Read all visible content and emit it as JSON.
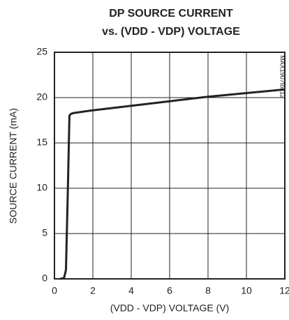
{
  "chart_data": {
    "type": "line",
    "title": [
      "DP SOURCE CURRENT",
      "vs. (VDD - VDP) VOLTAGE"
    ],
    "xlabel": "(VDD - VDP) VOLTAGE (V)",
    "ylabel": "SOURCE CURRENT (mA)",
    "annotation": "MAX1907toc12",
    "x": [
      0.3,
      0.5,
      0.6,
      0.7,
      0.78,
      0.85,
      1,
      2,
      4,
      6,
      8,
      10,
      12
    ],
    "series": [
      {
        "name": "SOURCE CURRENT",
        "color": "#222222",
        "values": [
          0,
          0.1,
          1,
          10,
          18,
          18.2,
          18.3,
          18.6,
          19.1,
          19.6,
          20.1,
          20.5,
          20.9
        ]
      }
    ],
    "xlim": [
      0,
      12
    ],
    "xticks": [
      0,
      2,
      4,
      6,
      8,
      10,
      12
    ],
    "ylim": [
      0,
      25
    ],
    "yticks": [
      0,
      5,
      10,
      15,
      20,
      25
    ],
    "grid": true
  }
}
